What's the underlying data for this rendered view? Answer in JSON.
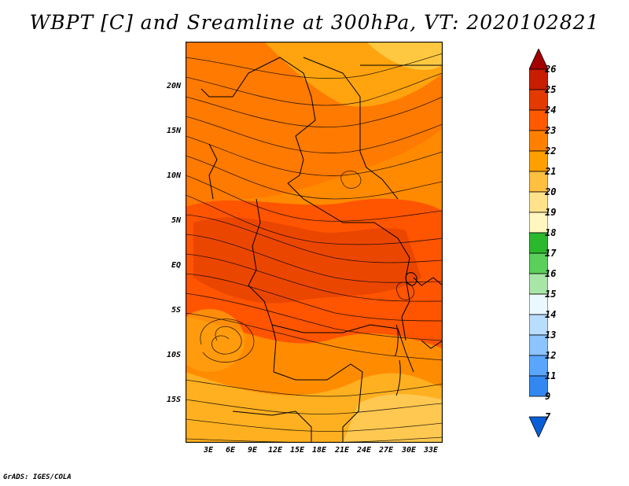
{
  "title": "WBPT [C] and Sreamline at 300hPa, VT: 2020102821",
  "footer": "GrADS: IGES/COLA",
  "map": {
    "lat_labels": [
      "20N",
      "15N",
      "10N",
      "5N",
      "EQ",
      "5S",
      "10S",
      "15S"
    ],
    "lon_labels": [
      "3E",
      "6E",
      "9E",
      "12E",
      "15E",
      "18E",
      "21E",
      "24E",
      "27E",
      "30E",
      "33E"
    ],
    "lat_values": [
      20,
      15,
      10,
      5,
      0,
      -5,
      -10,
      -15
    ],
    "lon_values": [
      3,
      6,
      9,
      12,
      15,
      18,
      21,
      24,
      27,
      30,
      33
    ],
    "lat_range": [
      -20,
      24.5
    ],
    "lon_range": [
      0,
      34.5
    ]
  },
  "colorbar": {
    "labels": [
      "26",
      "25",
      "24",
      "23",
      "22",
      "21",
      "20",
      "19",
      "18",
      "17",
      "16",
      "15",
      "14",
      "13",
      "12",
      "11",
      "9",
      "7"
    ],
    "colors": [
      "#a50000",
      "#c81e00",
      "#e33a00",
      "#ff5a00",
      "#ff8000",
      "#ffa000",
      "#ffc040",
      "#ffe28a",
      "#fff6c0",
      "#2cb82c",
      "#5ad05a",
      "#a8e6a8",
      "#eaf8ff",
      "#b8ddff",
      "#8cc4ff",
      "#5aa6ff",
      "#3288f0",
      "#0a5fd8"
    ]
  }
}
